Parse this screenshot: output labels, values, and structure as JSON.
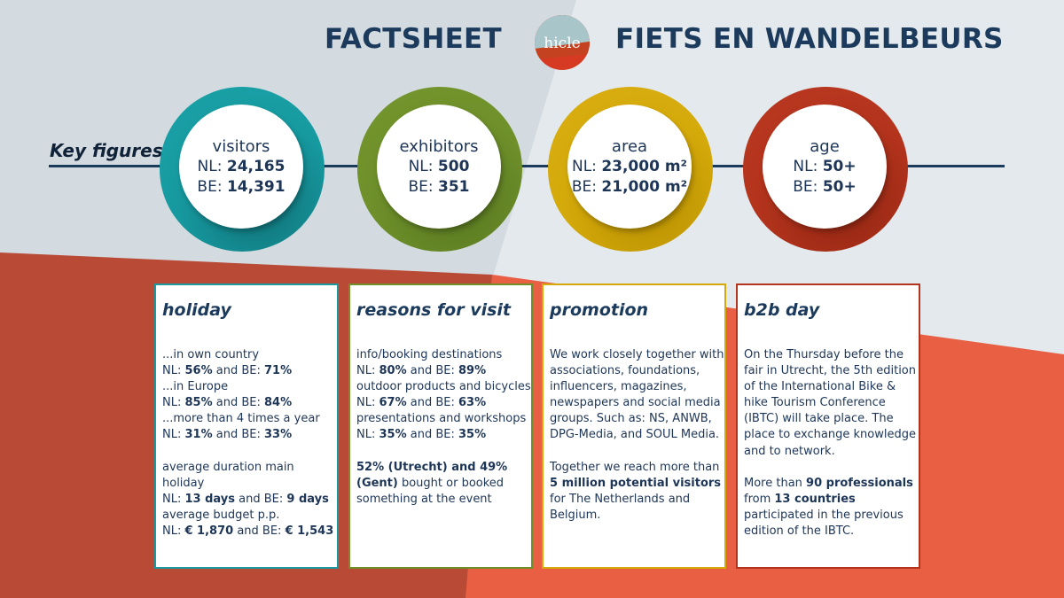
{
  "header": {
    "title_left": "FACTSHEET",
    "title_right": "FIETS EN WANDELBEURS",
    "logo_text": "hicle"
  },
  "key_figures": {
    "label": "Key figures",
    "items": [
      {
        "caption": "visitors",
        "nl_prefix": "NL:",
        "nl_value": "24,165",
        "be_prefix": "BE:",
        "be_value": "14,391",
        "color": "#169aa0"
      },
      {
        "caption": "exhibitors",
        "nl_prefix": "NL:",
        "nl_value": "500",
        "be_prefix": "BE:",
        "be_value": "351",
        "color": "#6e8f2a"
      },
      {
        "caption": "area",
        "nl_prefix": "NL:",
        "nl_value": "23,000 m²",
        "be_prefix": "BE:",
        "be_value": "21,000 m²",
        "color": "#d4a90a"
      },
      {
        "caption": "age",
        "nl_prefix": "NL:",
        "nl_value": "50+",
        "be_prefix": "BE:",
        "be_value": "50+",
        "color": "#b3331c"
      }
    ]
  },
  "cards": {
    "holiday": {
      "title": "holiday",
      "l1": "...in own country",
      "l2a": "NL: ",
      "l2b": "56%",
      "l2c": " and BE: ",
      "l2d": "71%",
      "l3": "...in Europe",
      "l4a": "NL: ",
      "l4b": "85%",
      "l4c": " and BE: ",
      "l4d": "84%",
      "l5": "...more than 4 times a year",
      "l6a": "NL: ",
      "l6b": "31%",
      "l6c": " and BE: ",
      "l6d": "33%",
      "l7": "average duration main holiday",
      "l8a": "NL: ",
      "l8b": "13 days",
      "l8c": " and BE: ",
      "l8d": "9 days",
      "l9": "average budget p.p.",
      "l10a": "NL: ",
      "l10b": "€ 1,870",
      "l10c": " and BE: ",
      "l10d": "€ 1,543"
    },
    "reasons": {
      "title": "reasons for visit",
      "l1": "info/booking destinations",
      "l2a": "NL: ",
      "l2b": "80%",
      "l2c": " and BE: ",
      "l2d": "89%",
      "l3": "outdoor products and bicycles",
      "l4a": "NL: ",
      "l4b": "67%",
      "l4c": " and BE: ",
      "l4d": "63%",
      "l5": "presentations and workshops",
      "l6a": "NL: ",
      "l6b": "35%",
      "l6c": " and BE: ",
      "l6d": "35%",
      "l7a": "52% (Utrecht) and 49% (Gent)",
      "l7b": " bought or booked something at the event"
    },
    "promotion": {
      "title": "promotion",
      "p1": "We work closely together with associations, foundations, influencers, magazines, newspapers and social media groups. Such as: NS, ANWB, DPG-Media, and SOUL Media.",
      "p2a": "Together we reach more than ",
      "p2b": "5 million potential visitors",
      "p2c": " for The Netherlands and Belgium."
    },
    "b2b": {
      "title": "b2b day",
      "p1": "On the Thursday before the fair in Utrecht, the 5th edition of the International Bike & hike Tourism Conference (IBTC) will take place. The place to exchange knowledge and to network.",
      "p2a": "More than ",
      "p2b": "90 professionals",
      "p2c": " from ",
      "p2d": "13 countries",
      "p2e": " participated in the previous edition of the IBTC."
    }
  }
}
